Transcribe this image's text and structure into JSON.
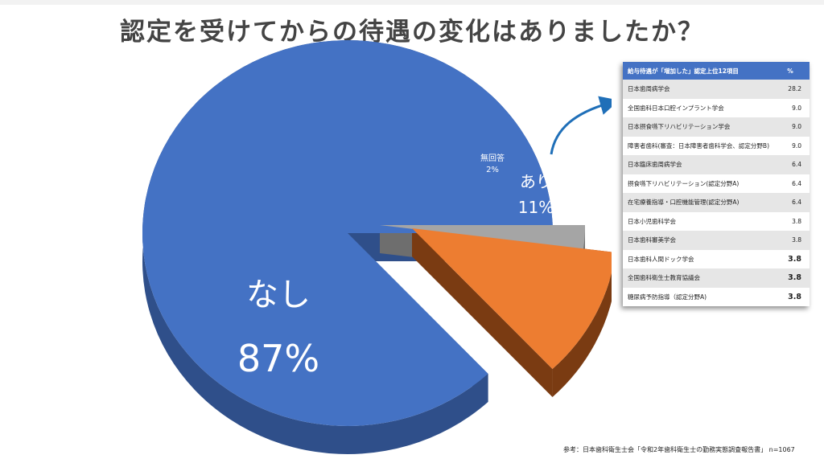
{
  "title": "認定を受けてからの待遇の変化はありましたか？",
  "chart_data": {
    "type": "pie",
    "slices": [
      {
        "label": "なし",
        "value": 87,
        "value_label": "87%",
        "color": "#4472c4"
      },
      {
        "label": "あり",
        "value": 11,
        "value_label": "11%",
        "color": "#ed7d31"
      },
      {
        "label": "無回答",
        "value": 2,
        "value_label": "2%",
        "color": "#a5a5a5"
      }
    ]
  },
  "table": {
    "header": {
      "item": "給与待遇が「増加した」認定上位12項目",
      "pct": "%"
    },
    "rows": [
      {
        "item": "日本歯周病学会",
        "pct": "28.2"
      },
      {
        "item": "全国歯科日本口腔インプラント学会",
        "pct": "9.0"
      },
      {
        "item": "日本摂食嚥下リハビリテーション学会",
        "pct": "9.0"
      },
      {
        "item": "障害者歯科(審査：日本障害者歯科学会、認定分野B)",
        "pct": "9.0"
      },
      {
        "item": "日本臨床歯周病学会",
        "pct": "6.4"
      },
      {
        "item": "摂食嚥下リハビリテーション(認定分野A)",
        "pct": "6.4"
      },
      {
        "item": "在宅療養指導・口腔機能管理(認定分野A)",
        "pct": "6.4"
      },
      {
        "item": "日本小児歯科学会",
        "pct": "3.8"
      },
      {
        "item": "日本歯科審美学会",
        "pct": "3.8"
      },
      {
        "item": "日本歯科人間ドック学会",
        "pct": "3.8"
      },
      {
        "item": "全国歯科衛生士教育協議会",
        "pct": "3.8"
      },
      {
        "item": "糖尿病予防指導（認定分野A)",
        "pct": "3.8"
      }
    ]
  },
  "source": "参考：日本歯科衛生士会「令和2年歯科衛生士の勤務実態調査報告書」 n=1067"
}
